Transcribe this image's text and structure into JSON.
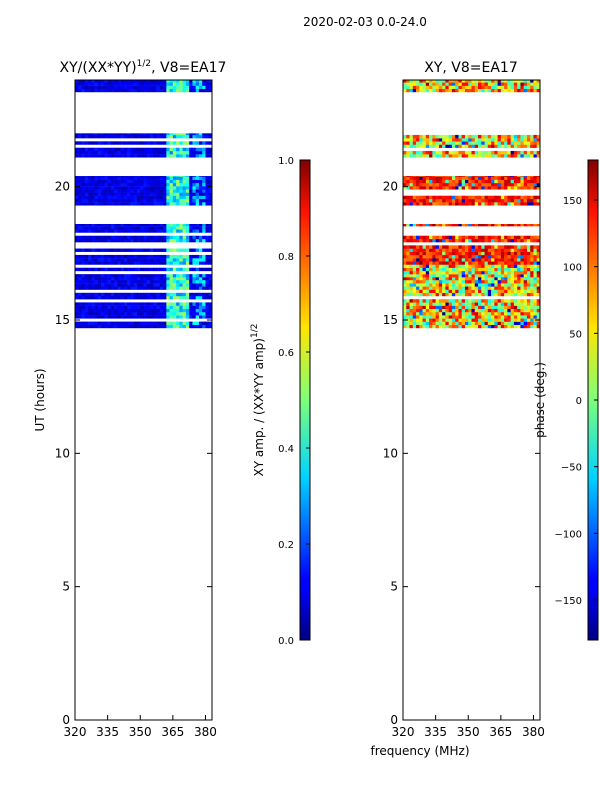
{
  "suptitle": "2020-02-03 0.0-24.0",
  "chart_data": [
    {
      "type": "heatmap",
      "title": "XY/(XX*YY)^1/2, V8=EA17",
      "title_main": "XY/(XX*YY)",
      "title_sup": "1/2",
      "title_tail": ", V8=EA17",
      "xlabel": "",
      "ylabel": "UT (hours)",
      "xlim": [
        320,
        383
      ],
      "ylim": [
        0,
        24
      ],
      "xticks": [
        "320",
        "335",
        "350",
        "365",
        "380"
      ],
      "xtick_values": [
        320,
        335,
        350,
        365,
        380
      ],
      "yticks": [
        "0",
        "5",
        "10",
        "15",
        "20"
      ],
      "ytick_values": [
        0,
        5,
        10,
        15,
        20
      ],
      "colormap": "jet",
      "colorbar": {
        "label": "XY amp. / (XX*YY amp)^1/2",
        "label_main": "XY amp. / (XX*YY amp)",
        "label_sup": "1/2",
        "range": [
          0.0,
          1.0
        ],
        "ticks": [
          "0.0",
          "0.2",
          "0.4",
          "0.6",
          "0.8",
          "1.0"
        ],
        "tick_values": [
          0.0,
          0.2,
          0.4,
          0.6,
          0.8,
          1.0
        ]
      },
      "data_blocks_hours": [
        [
          23.55,
          24.0
        ],
        [
          22.0,
          21.1
        ],
        [
          20.4,
          19.3
        ],
        [
          18.6,
          16.6
        ],
        [
          16.6,
          14.7
        ]
      ]
    },
    {
      "type": "heatmap",
      "title": "XY, V8=EA17",
      "xlabel": "frequency (MHz)",
      "ylabel": "",
      "xlim": [
        320,
        383
      ],
      "ylim": [
        0,
        24
      ],
      "xticks": [
        "320",
        "335",
        "350",
        "365",
        "380"
      ],
      "xtick_values": [
        320,
        335,
        350,
        365,
        380
      ],
      "yticks": [
        "0",
        "5",
        "10",
        "15",
        "20"
      ],
      "ytick_values": [
        0,
        5,
        10,
        15,
        20
      ],
      "colormap": "jet",
      "colorbar": {
        "label": "phase (deg.)",
        "range": [
          -180,
          180
        ],
        "ticks": [
          "−150",
          "−100",
          "−50",
          "0",
          "50",
          "100",
          "150"
        ],
        "tick_values": [
          -150,
          -100,
          -50,
          0,
          50,
          100,
          150
        ]
      },
      "data_blocks_hours": [
        [
          23.55,
          24.0
        ],
        [
          22.0,
          21.1
        ],
        [
          20.4,
          19.3
        ],
        [
          18.6,
          16.6
        ],
        [
          16.6,
          14.7
        ]
      ]
    }
  ]
}
